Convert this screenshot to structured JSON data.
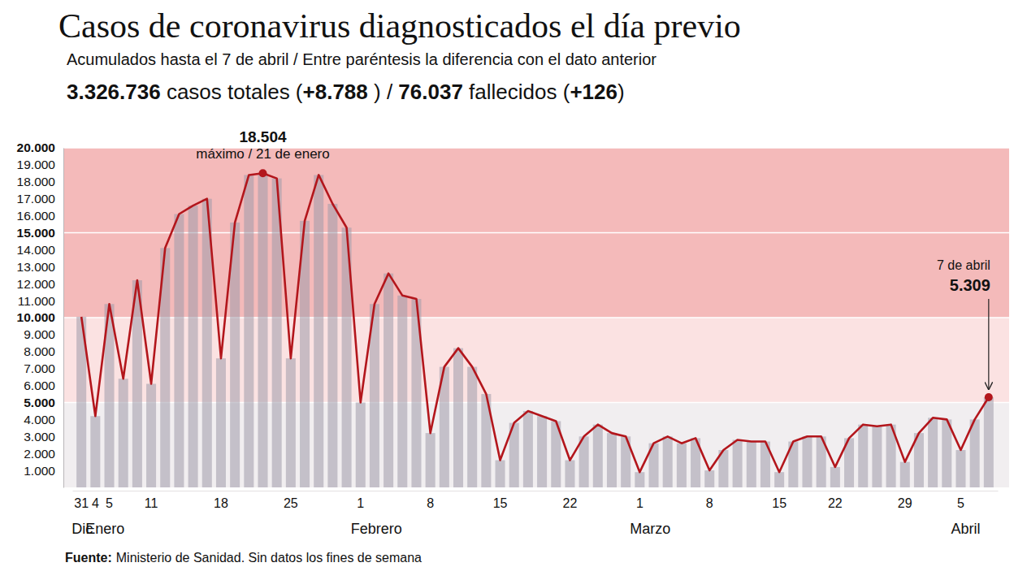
{
  "chart_data": {
    "type": "bar",
    "title": "Casos de coronavirus diagnosticados el día previo",
    "subtitle": "Acumulados hasta el 7 de abril / Entre paréntesis la diferencia con el dato anterior",
    "summary": [
      "3.326.736",
      " casos totales (",
      "+8.788",
      " ) / ",
      "76.037",
      " fallecidos (",
      "+126",
      ")"
    ],
    "source_label": "Fuente:",
    "source": "Ministerio de Sanidad. Sin datos los fines de semana",
    "categories": [
      "31",
      "4",
      "5",
      null,
      null,
      "11",
      null,
      null,
      null,
      null,
      "18",
      null,
      null,
      null,
      null,
      "25",
      null,
      null,
      null,
      null,
      "1",
      null,
      null,
      null,
      null,
      "8",
      null,
      null,
      null,
      null,
      "15",
      null,
      null,
      null,
      null,
      "22",
      null,
      null,
      null,
      null,
      "1",
      null,
      null,
      null,
      null,
      "8",
      null,
      null,
      null,
      null,
      "15",
      null,
      null,
      null,
      "22",
      null,
      null,
      null,
      null,
      "29",
      null,
      null,
      null,
      "5",
      null,
      null
    ],
    "month_labels": [
      "Dic",
      "Enero",
      null,
      null,
      null,
      null,
      null,
      null,
      null,
      null,
      null,
      null,
      null,
      null,
      null,
      null,
      null,
      null,
      null,
      null,
      "Febrero",
      null,
      null,
      null,
      null,
      null,
      null,
      null,
      null,
      null,
      null,
      null,
      null,
      null,
      null,
      null,
      null,
      null,
      null,
      null,
      "Marzo",
      null,
      null,
      null,
      null,
      null,
      null,
      null,
      null,
      null,
      null,
      null,
      null,
      null,
      null,
      null,
      null,
      null,
      null,
      null,
      null,
      null,
      null,
      "Abril",
      null,
      null
    ],
    "series": [
      {
        "type": "bar",
        "color": "#9e9baa",
        "values": [
          10050,
          4200,
          10800,
          6400,
          12200,
          6100,
          14100,
          16100,
          16600,
          17000,
          7600,
          15600,
          18400,
          18504,
          18200,
          7600,
          15700,
          18400,
          16700,
          15300,
          5000,
          10800,
          12600,
          11300,
          11100,
          3200,
          7100,
          8200,
          7100,
          5500,
          1600,
          3800,
          4500,
          4200,
          3900,
          1600,
          3000,
          3700,
          3200,
          3000,
          900,
          2600,
          3000,
          2600,
          2900,
          1000,
          2200,
          2800,
          2700,
          2700,
          900,
          2700,
          3000,
          3000,
          1200,
          2900,
          3700,
          3600,
          3700,
          1500,
          3200,
          4100,
          4000,
          2200,
          4000,
          5309
        ]
      },
      {
        "type": "line",
        "color": "#b3161c",
        "values": [
          10050,
          4200,
          10800,
          6400,
          12200,
          6100,
          14100,
          16100,
          16600,
          17000,
          7600,
          15600,
          18400,
          18504,
          18200,
          7600,
          15700,
          18400,
          16700,
          15300,
          5000,
          10800,
          12600,
          11300,
          11100,
          3200,
          7100,
          8200,
          7100,
          5500,
          1600,
          3800,
          4500,
          4200,
          3900,
          1600,
          3000,
          3700,
          3200,
          3000,
          900,
          2600,
          3000,
          2600,
          2900,
          1000,
          2200,
          2800,
          2700,
          2700,
          900,
          2700,
          3000,
          3000,
          1200,
          2900,
          3700,
          3600,
          3700,
          1500,
          3200,
          4100,
          4000,
          2200,
          4000,
          5309
        ]
      }
    ],
    "annotations": [
      {
        "index": 13,
        "label": "18.504",
        "text": "máximo / 21 de enero"
      },
      {
        "index": 65,
        "label": "5.309",
        "text": "7 de abril"
      }
    ],
    "bands": [
      {
        "from": 0,
        "to": 5000,
        "color": "#f1eef0"
      },
      {
        "from": 5000,
        "to": 10000,
        "color": "#fbe2e2"
      },
      {
        "from": 10000,
        "to": 15000,
        "color": "#f4baba"
      },
      {
        "from": 15000,
        "to": 20000,
        "color": "#f4baba"
      }
    ],
    "ylim": [
      0,
      20000
    ],
    "yticks": [
      {
        "value": 1000,
        "label": "1.000"
      },
      {
        "value": 2000,
        "label": "2.000"
      },
      {
        "value": 3000,
        "label": "3.000"
      },
      {
        "value": 4000,
        "label": "4.000"
      },
      {
        "value": 5000,
        "label": "5.000"
      },
      {
        "value": 6000,
        "label": "6.000"
      },
      {
        "value": 7000,
        "label": "7.000"
      },
      {
        "value": 8000,
        "label": "8.000"
      },
      {
        "value": 9000,
        "label": "9.000"
      },
      {
        "value": 10000,
        "label": "10.000"
      },
      {
        "value": 11000,
        "label": "11.000"
      },
      {
        "value": 12000,
        "label": "12.000"
      },
      {
        "value": 13000,
        "label": "13.000"
      },
      {
        "value": 14000,
        "label": "14.000"
      },
      {
        "value": 15000,
        "label": "15.000"
      },
      {
        "value": 16000,
        "label": "16.000"
      },
      {
        "value": 17000,
        "label": "17.000"
      },
      {
        "value": 18000,
        "label": "18.000"
      },
      {
        "value": 19000,
        "label": "19.000"
      },
      {
        "value": 20000,
        "label": "20.000"
      }
    ]
  }
}
